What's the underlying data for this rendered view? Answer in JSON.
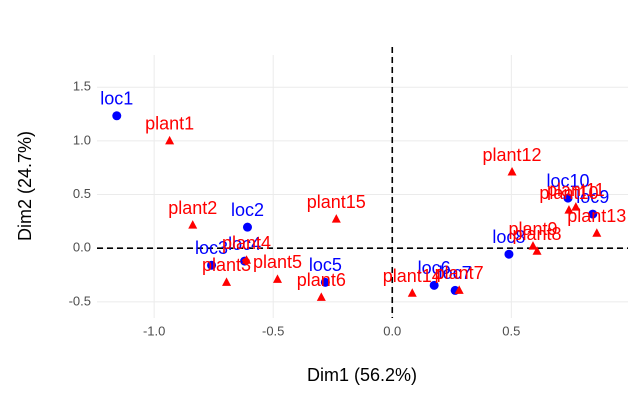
{
  "chart_data": {
    "type": "scatter",
    "x_label": "Dim1 (56.2%)",
    "y_label": "Dim2 (24.7%)",
    "xlim": [
      -1.24,
      0.99
    ],
    "ylim": [
      -0.65,
      1.8
    ],
    "xticks": [
      {
        "value": -1.0,
        "label": "-1.0"
      },
      {
        "value": -0.5,
        "label": "-0.5"
      },
      {
        "value": 0,
        "label": "0.0"
      },
      {
        "value": 0.5,
        "label": "0.5"
      }
    ],
    "yticks": [
      {
        "value": -0.5,
        "label": "-0.5"
      },
      {
        "value": 0,
        "label": "0.0"
      },
      {
        "value": 0.5,
        "label": "0.5"
      },
      {
        "value": 1.0,
        "label": "1.0"
      },
      {
        "value": 1.5,
        "label": "1.5"
      }
    ],
    "grid": true,
    "series": [
      {
        "color": "#0000ff",
        "marker": "circle",
        "labels": [
          "loc1",
          "loc2",
          "loc3",
          "loc4",
          "loc5",
          "loc6",
          "loc7",
          "loc8",
          "loc9",
          "loc10"
        ],
        "x": [
          -1.157,
          -0.608,
          -0.759,
          -0.62,
          -0.281,
          0.176,
          0.264,
          0.49,
          0.842,
          0.738
        ],
        "values": [
          1.234,
          0.196,
          -0.159,
          -0.12,
          -0.318,
          -0.346,
          -0.393,
          -0.056,
          0.318,
          0.467
        ]
      },
      {
        "color": "#ff0000",
        "marker": "triangle",
        "labels": [
          "plant1",
          "plant2",
          "plant3",
          "plant4",
          "plant5",
          "plant6",
          "plant7",
          "plant8",
          "plant9",
          "plant10",
          "plant11",
          "plant12",
          "plant13",
          "plant14",
          "plant15"
        ],
        "x": [
          -0.935,
          -0.838,
          -0.696,
          -0.612,
          -0.482,
          -0.298,
          0.281,
          0.608,
          0.591,
          0.742,
          0.771,
          0.503,
          0.859,
          0.084,
          -0.235
        ],
        "values": [
          1.0,
          0.215,
          -0.318,
          -0.112,
          -0.29,
          -0.458,
          -0.393,
          -0.028,
          0.019,
          0.355,
          0.383,
          0.71,
          0.14,
          -0.42,
          0.271
        ]
      }
    ]
  }
}
